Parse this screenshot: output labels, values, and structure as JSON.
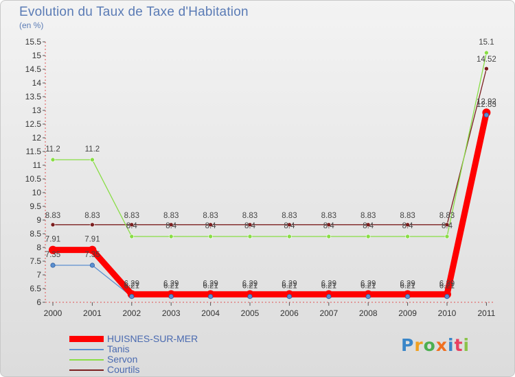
{
  "chart_data": {
    "type": "line",
    "title": "Evolution du Taux de Taxe d'Habitation",
    "subtitle": "(en %)",
    "xlabel": "",
    "ylabel": "(en %)",
    "categories": [
      "2000",
      "2001",
      "2002",
      "2003",
      "2004",
      "2005",
      "2006",
      "2007",
      "2008",
      "2009",
      "2010",
      "2011"
    ],
    "ylim": [
      6,
      15.5
    ],
    "yticks": [
      "6",
      "6.5",
      "7",
      "7.5",
      "8",
      "8.5",
      "9",
      "9.5",
      "10",
      "10.5",
      "11",
      "11.5",
      "12",
      "12.5",
      "13",
      "13.5",
      "14",
      "14.5",
      "15",
      "15.5"
    ],
    "grid": false,
    "legend_position": "bottom-left",
    "series": [
      {
        "name": "HUISNES-SUR-MER",
        "color": "#ff0000",
        "values": [
          7.91,
          7.91,
          6.29,
          6.29,
          6.29,
          6.29,
          6.29,
          6.29,
          6.29,
          6.29,
          6.29,
          12.92
        ],
        "labels": [
          "7.91",
          "7.91",
          "6.29",
          "6.29",
          "6.29",
          "6.29",
          "6.29",
          "6.29",
          "6.29",
          "6.29",
          "6.29",
          "12.92"
        ]
      },
      {
        "name": "Tanis",
        "color": "#5b8fd0",
        "values": [
          7.35,
          7.35,
          6.21,
          6.21,
          6.21,
          6.21,
          6.21,
          6.21,
          6.21,
          6.21,
          6.21,
          12.83
        ],
        "labels": [
          "7.35",
          "7.35",
          "6.21",
          "6.21",
          "6.21",
          "6.21",
          "6.21",
          "6.21",
          "6.21",
          "6.21",
          "6.21",
          "12.83"
        ]
      },
      {
        "name": "Servon",
        "color": "#88dd44",
        "values": [
          11.2,
          11.2,
          8.4,
          8.4,
          8.4,
          8.4,
          8.4,
          8.4,
          8.4,
          8.4,
          8.4,
          15.1
        ],
        "labels": [
          "11.2",
          "11.2",
          "8.4",
          "8.4",
          "8.4",
          "8.4",
          "8.4",
          "8.4",
          "8.4",
          "8.4",
          "8.4",
          "15.1"
        ]
      },
      {
        "name": "Courtils",
        "color": "#7a1e1e",
        "values": [
          8.83,
          8.83,
          8.83,
          8.83,
          8.83,
          8.83,
          8.83,
          8.83,
          8.83,
          8.83,
          8.83,
          14.52
        ],
        "labels": [
          "8.83",
          "8.83",
          "8.83",
          "8.83",
          "8.83",
          "8.83",
          "8.83",
          "8.83",
          "8.83",
          "8.83",
          "8.83",
          "14.52"
        ]
      }
    ]
  },
  "logo": {
    "letters": [
      "P",
      "r",
      "o",
      "x",
      "i",
      "t",
      "i"
    ],
    "colors": [
      "#3a86c8",
      "#f0a020",
      "#4caf50",
      "#f07020",
      "#3a86c8",
      "#e84060",
      "#8bc34a"
    ]
  }
}
